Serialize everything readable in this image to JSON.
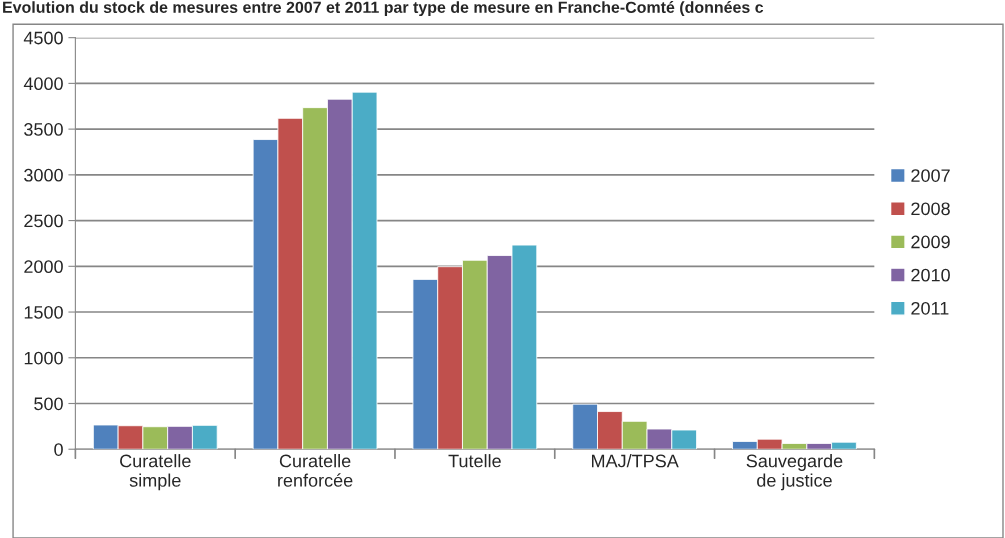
{
  "chart_data": {
    "type": "bar",
    "title": "Evolution du stock de mesures entre 2007 et 2011 par type de mesure en Franche-Comté (données c",
    "categories": [
      "Curatelle\nsimple",
      "Curatelle\nrenforcée",
      "Tutelle",
      "MAJ/TPSA",
      "Sauvegarde\nde justice"
    ],
    "series": [
      {
        "name": "2007",
        "color": "#4f81bd",
        "values": [
          265,
          3386,
          1857,
          493,
          85
        ]
      },
      {
        "name": "2008",
        "color": "#c0504d",
        "values": [
          257,
          3618,
          1996,
          412,
          110
        ]
      },
      {
        "name": "2009",
        "color": "#9bbb59",
        "values": [
          246,
          3735,
          2066,
          305,
          63
        ]
      },
      {
        "name": "2010",
        "color": "#8064a2",
        "values": [
          250,
          3827,
          2118,
          221,
          63
        ]
      },
      {
        "name": "2011",
        "color": "#4bacc6",
        "values": [
          261,
          3904,
          2232,
          210,
          77
        ]
      }
    ],
    "ylim": [
      0,
      4500
    ],
    "yticks": [
      0,
      500,
      1000,
      1500,
      2000,
      2500,
      3000,
      3500,
      4000,
      4500
    ],
    "grid": "y",
    "legend": "right"
  }
}
